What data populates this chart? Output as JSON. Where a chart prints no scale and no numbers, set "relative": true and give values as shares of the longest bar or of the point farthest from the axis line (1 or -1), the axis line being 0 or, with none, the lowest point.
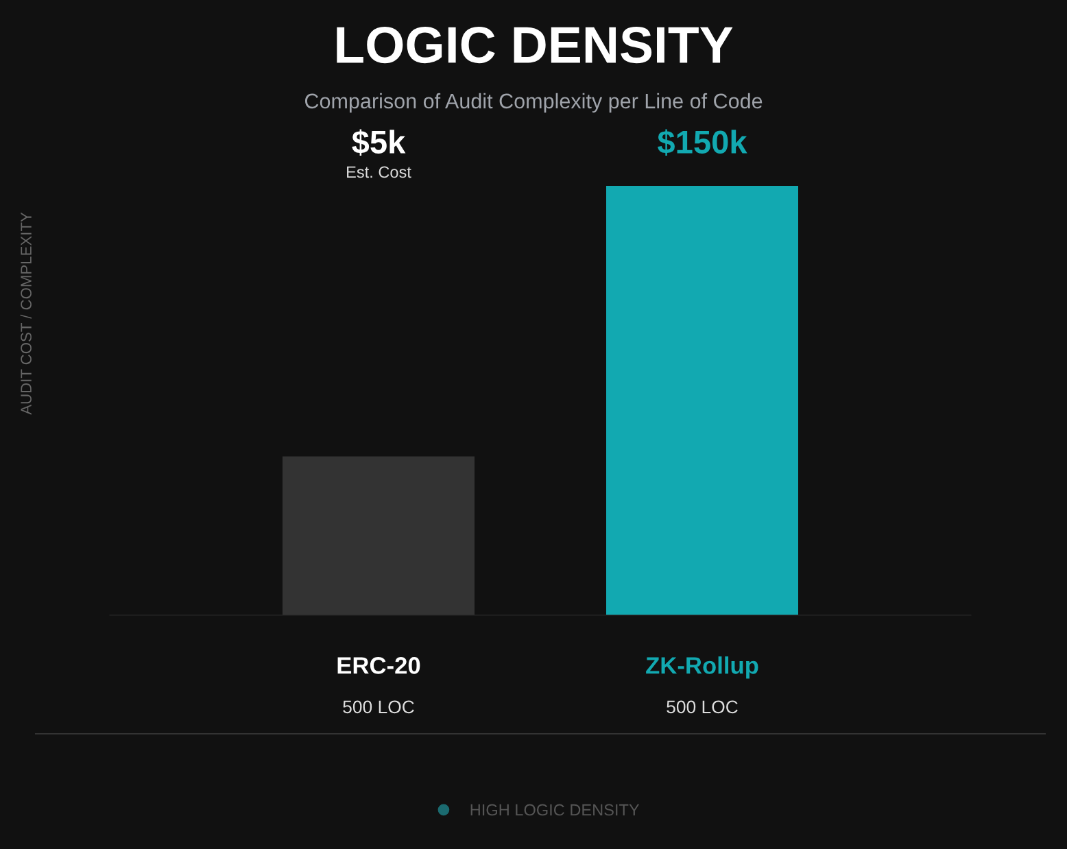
{
  "chart_data": {
    "type": "bar",
    "title": "LOGIC DENSITY",
    "subtitle": "Comparison of Audit Complexity per Line of Code",
    "categories": [
      "ERC-20",
      "ZK-Rollup"
    ],
    "relative": true,
    "series": [
      {
        "color": "#333333",
        "values": [
          0.37,
          null
        ]
      },
      {
        "name": "HIGH LOGIC DENSITY",
        "color": "#12a9b1",
        "values": [
          null,
          1
        ]
      }
    ],
    "annotations": [
      "AUDIT COST / COMPLEXITY",
      "$5k",
      "Est. Cost",
      "500 LOC",
      "$150k",
      "500 LOC"
    ],
    "legend": "bottom"
  }
}
